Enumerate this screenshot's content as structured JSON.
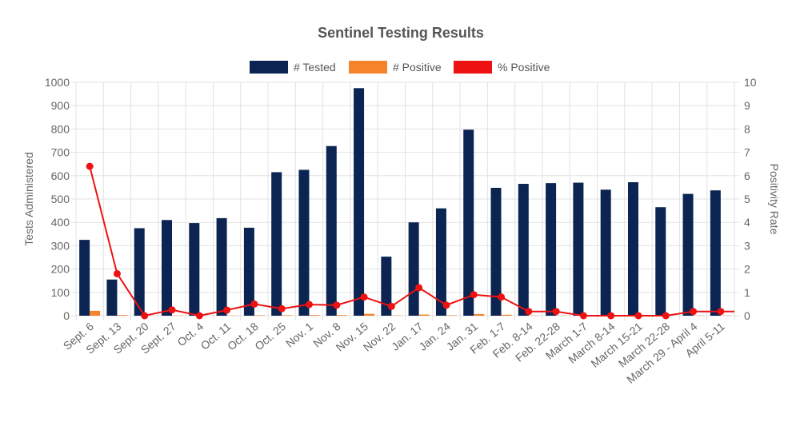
{
  "chart_data": {
    "type": "bar",
    "title": "Sentinel Testing Results",
    "legend_position": "top",
    "grid": true,
    "categories": [
      "Sept. 6",
      "Sept. 13",
      "Sept. 20",
      "Sept. 27",
      "Oct. 4",
      "Oct. 11",
      "Oct. 18",
      "Oct. 25",
      "Nov. 1",
      "Nov. 8",
      "Nov. 15",
      "Nov. 22",
      "Jan. 17",
      "Jan. 24",
      "Jan. 31",
      "Feb. 1-7",
      "Feb. 8-14",
      "Feb. 22-28",
      "March 1-7",
      "March 8-14",
      "March 15-21",
      "March 22-28",
      "March 29 - April 4",
      "April 5-11"
    ],
    "ylabel": "Tests Administered",
    "ylim": [
      0,
      1000
    ],
    "yticks": [
      0,
      100,
      200,
      300,
      400,
      500,
      600,
      700,
      800,
      900,
      1000
    ],
    "y2label": "Positivity Rate",
    "y2lim": [
      0,
      10
    ],
    "y2ticks": [
      0,
      1,
      2,
      3,
      4,
      5,
      6,
      7,
      8,
      9,
      10
    ],
    "series": [
      {
        "name": "# Tested",
        "type": "bar",
        "axis": "left",
        "color": "#0b2452",
        "values": [
          325,
          155,
          375,
          410,
          397,
          418,
          377,
          615,
          625,
          727,
          975,
          253,
          400,
          460,
          797,
          548,
          565,
          568,
          570,
          540,
          572,
          465,
          522,
          537
        ]
      },
      {
        "name": "# Positive",
        "type": "bar",
        "axis": "left",
        "color": "#f5832a",
        "values": [
          21,
          3,
          0,
          1,
          0,
          1,
          2,
          2,
          3,
          3,
          8,
          1,
          5,
          2,
          7,
          4,
          1,
          1,
          0,
          0,
          0,
          0,
          1,
          1
        ]
      },
      {
        "name": "% Positive",
        "type": "line",
        "axis": "right",
        "color": "#ee1111",
        "values": [
          6.4,
          1.8,
          0.0,
          0.25,
          0.0,
          0.24,
          0.5,
          0.3,
          0.48,
          0.45,
          0.8,
          0.4,
          1.2,
          0.45,
          0.9,
          0.8,
          0.18,
          0.18,
          0.0,
          0.0,
          0.0,
          0.0,
          0.18,
          0.18
        ]
      }
    ]
  }
}
